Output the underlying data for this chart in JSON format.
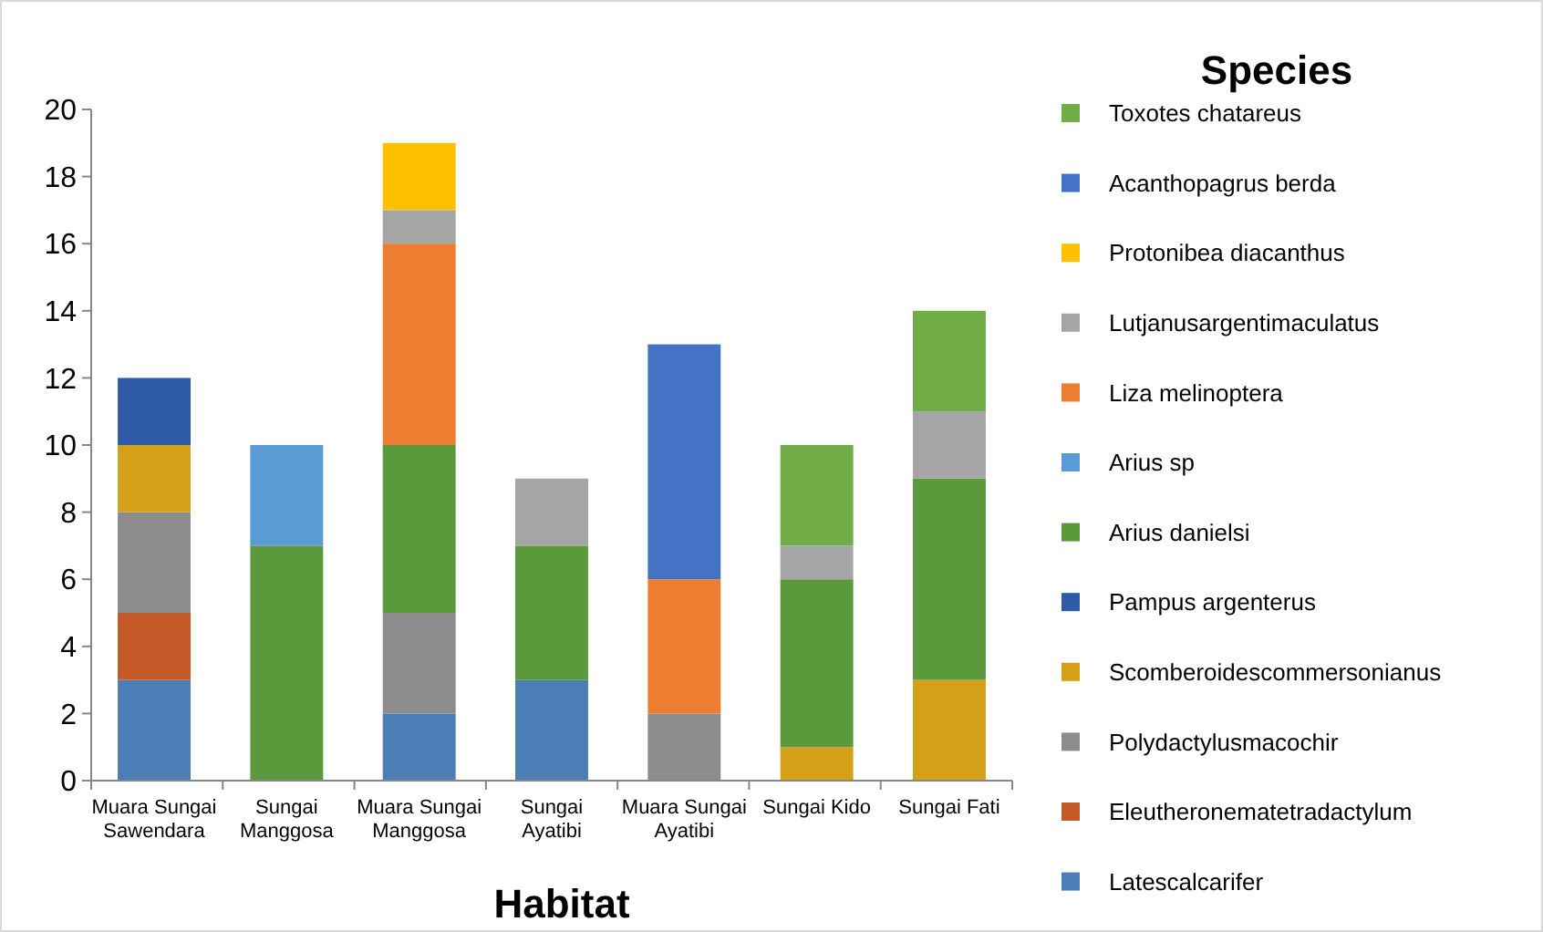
{
  "chart_data": {
    "type": "bar",
    "stacked": true,
    "xlabel": "Habitat",
    "legend_title": "Species",
    "legend": "right",
    "grid": false,
    "categories": [
      "Muara Sungai Sawendara",
      "Sungai Manggosa",
      "Muara Sungai Manggosa",
      "Sungai Ayatibi",
      "Muara Sungai Ayatibi",
      "Sungai Kido",
      "Sungai Fati"
    ],
    "ylim": [
      0,
      20
    ],
    "yticks": [
      0,
      2,
      4,
      6,
      8,
      10,
      12,
      14,
      16,
      18,
      20
    ],
    "series": [
      {
        "name": "Latescalcarifer",
        "color": "#4a7eb5",
        "values": [
          3,
          0,
          2,
          3,
          0,
          0,
          0
        ]
      },
      {
        "name": "Eleutheronematetradactylum",
        "color": "#c55a28",
        "values": [
          2,
          0,
          0,
          0,
          0,
          0,
          0
        ]
      },
      {
        "name": "Polydactylusmacochir",
        "color": "#8c8c8c",
        "values": [
          3,
          0,
          3,
          0,
          2,
          0,
          0
        ]
      },
      {
        "name": "Scomberoidescommersonianus",
        "color": "#d4a017",
        "values": [
          2,
          0,
          0,
          0,
          0,
          1,
          3
        ]
      },
      {
        "name": "Pampus argenterus",
        "color": "#2e5aa6",
        "values": [
          2,
          0,
          0,
          0,
          0,
          0,
          0
        ]
      },
      {
        "name": "Arius danielsi",
        "color": "#5a9a3c",
        "values": [
          0,
          7,
          5,
          4,
          0,
          5,
          6
        ]
      },
      {
        "name": "Arius sp",
        "color": "#5b9bd5",
        "values": [
          0,
          3,
          0,
          0,
          0,
          0,
          0
        ]
      },
      {
        "name": "Liza melinoptera",
        "color": "#ed7d31",
        "values": [
          0,
          0,
          6,
          0,
          4,
          0,
          0
        ]
      },
      {
        "name": "Lutjanusargentimaculatus",
        "color": "#a5a5a5",
        "values": [
          0,
          0,
          1,
          2,
          0,
          1,
          2
        ]
      },
      {
        "name": "Protonibea diacanthus",
        "color": "#ffc000",
        "values": [
          0,
          0,
          2,
          0,
          0,
          0,
          0
        ]
      },
      {
        "name": "Acanthopagrus berda",
        "color": "#4472c4",
        "values": [
          0,
          0,
          0,
          0,
          7,
          0,
          0
        ]
      },
      {
        "name": "Toxotes chatareus",
        "color": "#70ad47",
        "values": [
          0,
          0,
          0,
          0,
          0,
          3,
          3
        ]
      }
    ]
  }
}
